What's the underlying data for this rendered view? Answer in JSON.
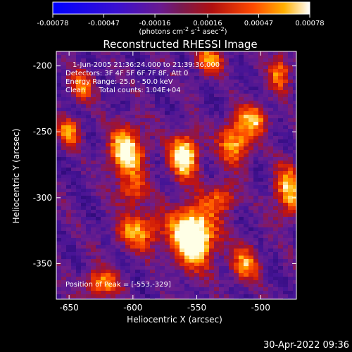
{
  "chart_data": {
    "type": "heatmap",
    "title": "Reconstructed RHESSI Image",
    "xlabel": "Heliocentric X (arcsec)",
    "ylabel": "Heliocentric Y (arcsec)",
    "xlim": [
      -660,
      -472
    ],
    "ylim": [
      -377,
      -189
    ],
    "xticks": [
      -650,
      -600,
      -550,
      -500
    ],
    "xtick_labels": [
      "-650",
      "-600",
      "-550",
      "-500"
    ],
    "yticks": [
      -200,
      -250,
      -300,
      -350
    ],
    "ytick_labels": [
      "-200",
      "-250",
      "-300",
      "-350"
    ],
    "colorbar": {
      "ticks": [
        -0.00078,
        -0.00047,
        -0.00016,
        0.00016,
        0.00047,
        0.00078
      ],
      "tick_labels": [
        "-0.00078",
        "-0.00047",
        "-0.00016",
        "0.00016",
        "0.00047",
        "0.00078"
      ],
      "range": [
        -0.00078,
        0.00078
      ],
      "unit_label": "(photons cm-2 s-1 asec-2)"
    },
    "annotations": [
      "1-Jun-2005 21:36:24.000 to 21:39:36.000",
      "Detectors: 3F 4F 5F 6F 7F 8F, Att 0",
      "Energy Range: 25.0 - 50.0 keV",
      "Clean      Total counts: 1.04E+04"
    ],
    "peak_label": "Position of Peak = [-553,-329]",
    "peak_position": [
      -553,
      -329
    ],
    "hotspots": [
      {
        "x": -553,
        "y": -329,
        "intensity": 1.0,
        "sx": 12,
        "sy": 16
      },
      {
        "x": -560,
        "y": -268,
        "intensity": 0.8,
        "sx": 8,
        "sy": 12
      },
      {
        "x": -605,
        "y": -265,
        "intensity": 0.75,
        "sx": 10,
        "sy": 14
      },
      {
        "x": -520,
        "y": -258,
        "intensity": 0.6,
        "sx": 9,
        "sy": 12
      },
      {
        "x": -650,
        "y": -250,
        "intensity": 0.55,
        "sx": 6,
        "sy": 8
      },
      {
        "x": -595,
        "y": -325,
        "intensity": 0.55,
        "sx": 12,
        "sy": 10
      },
      {
        "x": -505,
        "y": -240,
        "intensity": 0.55,
        "sx": 8,
        "sy": 8
      },
      {
        "x": -478,
        "y": -295,
        "intensity": 0.6,
        "sx": 8,
        "sy": 14
      },
      {
        "x": -512,
        "y": -350,
        "intensity": 0.5,
        "sx": 8,
        "sy": 10
      },
      {
        "x": -540,
        "y": -195,
        "intensity": 0.5,
        "sx": 8,
        "sy": 8
      },
      {
        "x": -640,
        "y": -215,
        "intensity": 0.45,
        "sx": 7,
        "sy": 8
      },
      {
        "x": -625,
        "y": -365,
        "intensity": 0.5,
        "sx": 10,
        "sy": 8
      },
      {
        "x": -485,
        "y": -205,
        "intensity": 0.5,
        "sx": 6,
        "sy": 10
      },
      {
        "x": -600,
        "y": -295,
        "intensity": 0.4,
        "sx": 8,
        "sy": 8
      },
      {
        "x": -530,
        "y": -300,
        "intensity": 0.45,
        "sx": 8,
        "sy": 8
      }
    ]
  },
  "footer": {
    "date": "30-Apr-2022 09:36"
  }
}
